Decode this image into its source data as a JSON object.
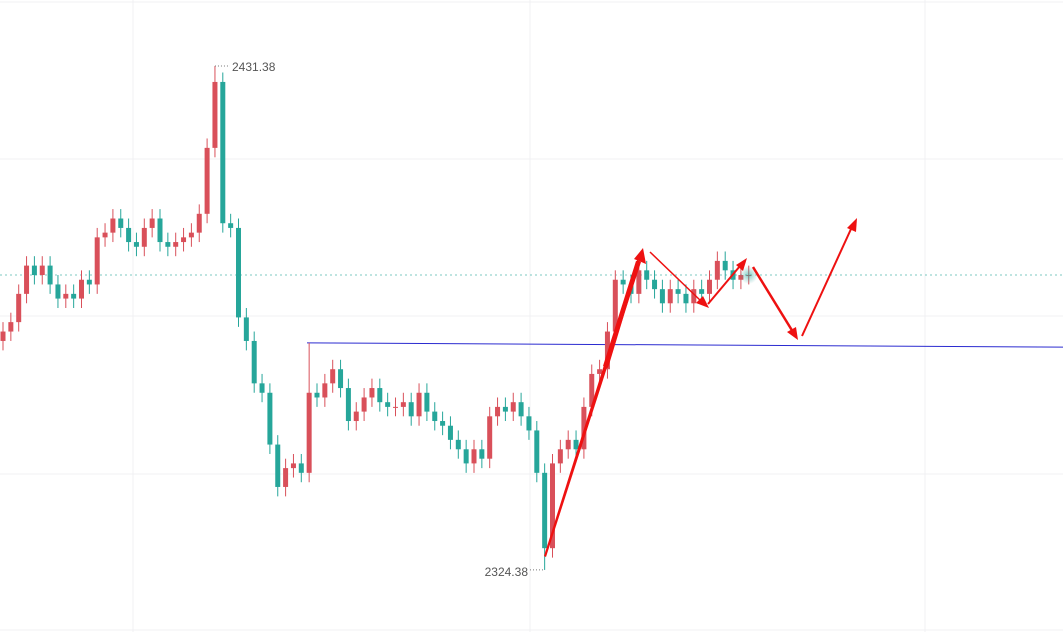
{
  "chart_data": {
    "type": "candlestick",
    "up_color": "#d9505a",
    "down_color": "#26a69a",
    "ylim": [
      2311.2,
      2445.4
    ],
    "open": [
      2373,
      2375,
      2377,
      2383,
      2389,
      2387,
      2389,
      2385,
      2382,
      2383,
      2382,
      2386,
      2385,
      2395,
      2396,
      2399,
      2397,
      2394,
      2393,
      2397,
      2399,
      2394,
      2393,
      2394,
      2395,
      2396,
      2400,
      2414,
      2428,
      2398,
      2397,
      2378,
      2373,
      2364,
      2362,
      2351,
      2342,
      2346,
      2347,
      2345,
      2362,
      2361,
      2364,
      2367,
      2363,
      2356,
      2358,
      2361,
      2363,
      2360,
      2359,
      2359,
      2360,
      2357,
      2362,
      2358,
      2356,
      2355,
      2352,
      2350,
      2347,
      2350,
      2348,
      2357,
      2359,
      2358,
      2360,
      2357,
      2354,
      2345,
      2329,
      2347,
      2350,
      2352,
      2350,
      2359,
      2366,
      2367,
      2375,
      2386,
      2385,
      2383,
      2388,
      2386,
      2384,
      2381,
      2384,
      2383,
      2381,
      2384,
      2383,
      2386,
      2390,
      2388,
      2386,
      2387
    ],
    "high": [
      2377,
      2379,
      2385,
      2391,
      2391,
      2391,
      2391,
      2387,
      2385,
      2385,
      2388,
      2388,
      2397,
      2398,
      2401,
      2401,
      2399,
      2396,
      2399,
      2401,
      2401,
      2396,
      2396,
      2397,
      2398,
      2402,
      2416,
      2431.38,
      2430,
      2400,
      2399,
      2380,
      2375,
      2366,
      2364,
      2353,
      2348,
      2349,
      2349,
      2372.6,
      2364,
      2366,
      2369,
      2369,
      2365,
      2360,
      2363,
      2365,
      2365,
      2362,
      2361,
      2362,
      2362,
      2364,
      2364,
      2360,
      2358,
      2357,
      2354,
      2352,
      2352,
      2352,
      2359,
      2361,
      2361,
      2362,
      2362,
      2359,
      2356,
      2347,
      2349,
      2352,
      2354,
      2354,
      2361,
      2368,
      2369,
      2377,
      2388,
      2388,
      2387,
      2390,
      2390,
      2388,
      2386,
      2386,
      2386,
      2385,
      2386,
      2386,
      2388,
      2392,
      2392,
      2390,
      2389,
      2389
    ],
    "low": [
      2371,
      2373,
      2375,
      2381,
      2385,
      2385,
      2383,
      2380,
      2380,
      2380,
      2380,
      2383,
      2383,
      2393,
      2394,
      2395,
      2392,
      2391,
      2391,
      2395,
      2392,
      2391,
      2391,
      2392,
      2393,
      2394,
      2398,
      2412,
      2396,
      2395,
      2376,
      2371,
      2362,
      2360,
      2349,
      2340,
      2340,
      2344,
      2343,
      2343,
      2359,
      2359,
      2362,
      2361,
      2354,
      2354,
      2356,
      2359,
      2358,
      2357,
      2357,
      2357,
      2355,
      2355,
      2356,
      2354,
      2353,
      2350,
      2348,
      2345,
      2345,
      2346,
      2346,
      2355,
      2356,
      2356,
      2355,
      2352,
      2343,
      2324.38,
      2327,
      2345,
      2348,
      2348,
      2348,
      2357,
      2364,
      2365,
      2373,
      2383,
      2381,
      2381,
      2384,
      2382,
      2379,
      2379,
      2381,
      2379,
      2379,
      2381,
      2381,
      2384,
      2386,
      2384,
      2384,
      2385
    ],
    "close": [
      2375,
      2377,
      2383,
      2389,
      2387,
      2389,
      2385,
      2382,
      2383,
      2382,
      2386,
      2385,
      2395,
      2396,
      2399,
      2397,
      2394,
      2393,
      2397,
      2399,
      2394,
      2393,
      2394,
      2395,
      2396,
      2400,
      2414,
      2428,
      2398,
      2397,
      2378,
      2373,
      2364,
      2362,
      2351,
      2342,
      2346,
      2347,
      2345,
      2362,
      2361,
      2364,
      2367,
      2363,
      2356,
      2358,
      2361,
      2363,
      2360,
      2359,
      2359,
      2360,
      2357,
      2362,
      2358,
      2356,
      2355,
      2352,
      2350,
      2347,
      2350,
      2348,
      2357,
      2359,
      2358,
      2360,
      2357,
      2354,
      2345,
      2329,
      2347,
      2350,
      2352,
      2350,
      2359,
      2366,
      2367,
      2375,
      2386,
      2385,
      2383,
      2388,
      2386,
      2384,
      2381,
      2384,
      2383,
      2381,
      2384,
      2383,
      2386,
      2390,
      2388,
      2386,
      2387,
      2387
    ],
    "high_label": "2431.38",
    "low_label": "2324.38",
    "level_line": {
      "color": "#2b2bd0",
      "values": [
        2372.6,
        2371.7
      ]
    }
  }
}
